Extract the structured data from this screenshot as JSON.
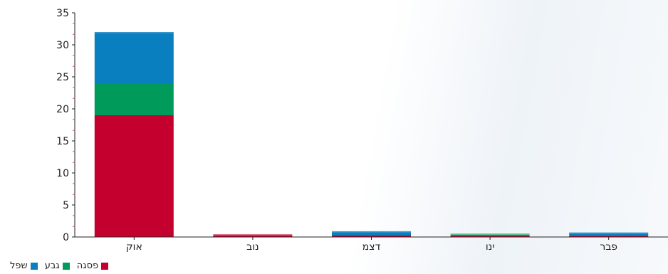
{
  "chart_data": {
    "type": "bar",
    "stacked": true,
    "categories": [
      "אוק",
      "נוב",
      "דצמ",
      "ינו",
      "פבר"
    ],
    "series": [
      {
        "name": "פסגה",
        "color": "#c4002f",
        "values": [
          19,
          0.4,
          0.3,
          0.2,
          0.2
        ]
      },
      {
        "name": "גבע",
        "color": "#009a5a",
        "values": [
          5,
          0,
          0,
          0.3,
          0
        ]
      },
      {
        "name": "שפל",
        "color": "#0a7fbf",
        "values": [
          8,
          0,
          0.6,
          0,
          0.5
        ]
      }
    ],
    "ylim": [
      0,
      35
    ],
    "yticks": [
      0,
      5,
      10,
      15,
      20,
      25,
      30,
      35
    ],
    "title": "",
    "xlabel": "",
    "ylabel": "",
    "legend_position": "bottom-left",
    "grid": false
  }
}
